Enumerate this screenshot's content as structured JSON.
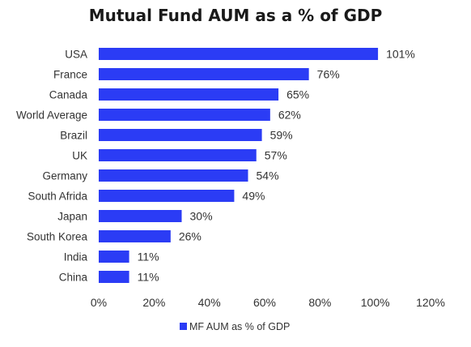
{
  "chart_data": {
    "type": "bar",
    "orientation": "horizontal",
    "title": "Mutual Fund AUM as a % of GDP",
    "categories": [
      "USA",
      "France",
      "Canada",
      "World Average",
      "Brazil",
      "UK",
      "Germany",
      "South Afrida",
      "Japan",
      "South Korea",
      "India",
      "China"
    ],
    "series": [
      {
        "name": "MF AUM as % of GDP",
        "values": [
          101,
          76,
          65,
          62,
          59,
          57,
          54,
          49,
          30,
          26,
          11,
          11
        ],
        "labels": [
          "101%",
          "76%",
          "65%",
          "62%",
          "59%",
          "57%",
          "54%",
          "49%",
          "30%",
          "26%",
          "11%",
          "11%"
        ]
      }
    ],
    "xlim": [
      0,
      120
    ],
    "xticks": [
      0,
      20,
      40,
      60,
      80,
      100,
      120
    ],
    "xtick_labels": [
      "0%",
      "20%",
      "40%",
      "60%",
      "80%",
      "100%",
      "120%"
    ],
    "grid": false,
    "legend_position": "bottom",
    "bar_color": "#2b3cf5"
  }
}
